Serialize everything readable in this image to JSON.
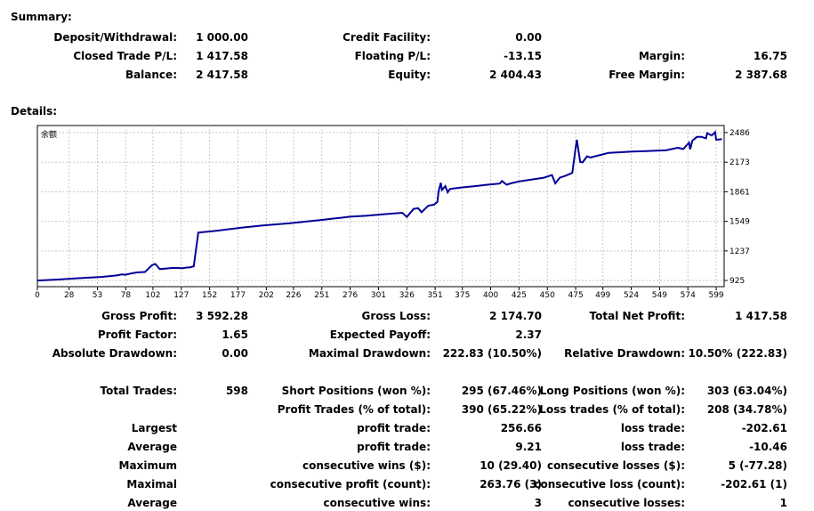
{
  "summary": {
    "title": "Summary:",
    "deposit_withdrawal": {
      "label": "Deposit/Withdrawal:",
      "value": "1 000.00"
    },
    "closed_trade_pl": {
      "label": "Closed Trade P/L:",
      "value": "1 417.58"
    },
    "balance": {
      "label": "Balance:",
      "value": "2 417.58"
    },
    "credit_facility": {
      "label": "Credit Facility:",
      "value": "0.00"
    },
    "floating_pl": {
      "label": "Floating P/L:",
      "value": "-13.15"
    },
    "equity": {
      "label": "Equity:",
      "value": "2 404.43"
    },
    "margin": {
      "label": "Margin:",
      "value": "16.75"
    },
    "free_margin": {
      "label": "Free Margin:",
      "value": "2 387.68"
    }
  },
  "details": {
    "title": "Details:",
    "gross_profit": {
      "label": "Gross Profit:",
      "value": "3 592.28"
    },
    "profit_factor": {
      "label": "Profit Factor:",
      "value": "1.65"
    },
    "absolute_drawdown": {
      "label": "Absolute Drawdown:",
      "value": "0.00"
    },
    "gross_loss": {
      "label": "Gross Loss:",
      "value": "2 174.70"
    },
    "expected_payoff": {
      "label": "Expected Payoff:",
      "value": "2.37"
    },
    "maximal_drawdown": {
      "label": "Maximal Drawdown:",
      "value": "222.83 (10.50%)"
    },
    "total_net_profit": {
      "label": "Total Net Profit:",
      "value": "1 417.58"
    },
    "relative_drawdown": {
      "label": "Relative Drawdown:",
      "value": "10.50% (222.83)"
    },
    "total_trades": {
      "label": "Total Trades:",
      "value": "598"
    },
    "short_positions": {
      "label": "Short Positions (won %):",
      "value": "295 (67.46%)"
    },
    "long_positions": {
      "label": "Long Positions (won %):",
      "value": "303 (63.04%)"
    },
    "profit_trades": {
      "label": "Profit Trades (% of total):",
      "value": "390 (65.22%)"
    },
    "loss_trades": {
      "label": "Loss trades (% of total):",
      "value": "208 (34.78%)"
    },
    "largest": {
      "label": "Largest",
      "profit_label": "profit trade:",
      "profit_value": "256.66",
      "loss_label": "loss trade:",
      "loss_value": "-202.61"
    },
    "average": {
      "label": "Average",
      "profit_label": "profit trade:",
      "profit_value": "9.21",
      "loss_label": "loss trade:",
      "loss_value": "-10.46"
    },
    "maximum": {
      "label": "Maximum",
      "profit_label": "consecutive wins ($):",
      "profit_value": "10 (29.40)",
      "loss_label": "consecutive losses ($):",
      "loss_value": "5 (-77.28)"
    },
    "maximal": {
      "label": "Maximal",
      "profit_label": "consecutive profit (count):",
      "profit_value": "263.76 (3)",
      "loss_label": "consecutive loss (count):",
      "loss_value": "-202.61 (1)"
    },
    "average2": {
      "label": "Average",
      "profit_label": "consecutive wins:",
      "profit_value": "3",
      "loss_label": "consecutive losses:",
      "loss_value": "1"
    }
  },
  "chart_data": {
    "type": "line",
    "series": [
      {
        "name": "余额",
        "x": [
          0,
          18,
          38,
          56,
          70,
          75,
          77,
          83,
          88,
          95,
          101,
          104,
          108,
          120,
          128,
          132,
          135,
          138,
          142,
          158,
          177,
          180,
          199,
          223,
          252,
          263,
          276,
          290,
          306,
          322,
          326,
          332,
          336,
          339,
          345,
          350,
          353,
          354,
          356,
          357,
          360,
          362,
          364,
          367,
          376,
          386,
          397,
          408,
          410,
          414,
          418,
          425,
          432,
          447,
          454,
          457,
          461,
          466,
          472,
          475,
          476,
          479,
          480,
          481,
          485,
          488,
          497,
          504,
          525,
          537,
          555,
          565,
          570,
          575,
          576,
          578,
          582,
          586,
          590,
          591,
          595,
          598,
          599,
          604
        ],
        "y": [
          925,
          935,
          950,
          962,
          978,
          990,
          985,
          1000,
          1010,
          1015,
          1085,
          1100,
          1045,
          1058,
          1055,
          1062,
          1065,
          1075,
          1430,
          1450,
          1478,
          1482,
          1505,
          1530,
          1565,
          1580,
          1598,
          1608,
          1625,
          1640,
          1595,
          1680,
          1688,
          1645,
          1715,
          1725,
          1755,
          1865,
          1955,
          1880,
          1920,
          1855,
          1890,
          1895,
          1908,
          1920,
          1935,
          1948,
          1975,
          1935,
          1950,
          1970,
          1982,
          2010,
          2038,
          1950,
          2010,
          2030,
          2060,
          2325,
          2410,
          2175,
          2175,
          2170,
          2235,
          2222,
          2250,
          2272,
          2285,
          2290,
          2300,
          2325,
          2312,
          2380,
          2308,
          2400,
          2440,
          2440,
          2425,
          2480,
          2455,
          2490,
          2410,
          2417
        ]
      }
    ],
    "x_ticks": [
      "0",
      "28",
      "53",
      "78",
      "102",
      "127",
      "152",
      "177",
      "202",
      "226",
      "251",
      "276",
      "301",
      "326",
      "351",
      "375",
      "400",
      "425",
      "450",
      "475",
      "499",
      "524",
      "549",
      "574",
      "599"
    ],
    "y_ticks": [
      "925",
      "1237",
      "1549",
      "1861",
      "2173",
      "2486"
    ],
    "xlim": [
      0,
      606
    ],
    "ylim": [
      860,
      2560
    ],
    "grid": true,
    "legend": "top-left",
    "colors": {
      "line": "#000099",
      "grid": "#c8c8c8",
      "frame": "#000000"
    }
  }
}
